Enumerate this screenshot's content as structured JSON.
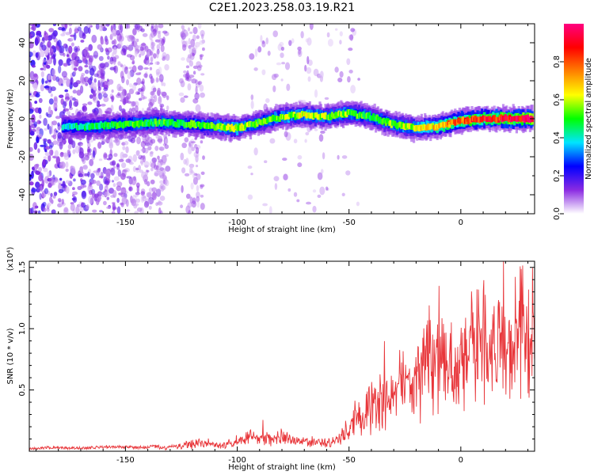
{
  "figure": {
    "title": "C2E1.2023.258.03.19.R21"
  },
  "chart_data": [
    {
      "type": "heatmap",
      "title": "C2E1.2023.258.03.19.R21",
      "xlabel": "Height of straight line (km)",
      "ylabel": "Frequency (Hz)",
      "xlim": [
        -193,
        33
      ],
      "ylim": [
        -50,
        50
      ],
      "xticks": [
        -150,
        -100,
        -50,
        0
      ],
      "yticks": [
        -40,
        -20,
        0,
        20,
        40
      ],
      "colorbar": {
        "label": "Normalized spectral amplitude",
        "range": [
          0.0,
          1.0
        ],
        "ticks": [
          0.0,
          0.2,
          0.4,
          0.6,
          0.8
        ],
        "colors": [
          "#ffffff",
          "#8a2be2",
          "#0000ff",
          "#00e5ff",
          "#00ff00",
          "#ffff00",
          "#ff8000",
          "#ff0000",
          "#ff0080"
        ]
      },
      "ridge": {
        "x": [
          -178,
          -165,
          -150,
          -135,
          -120,
          -110,
          -100,
          -90,
          -80,
          -70,
          -60,
          -50,
          -40,
          -30,
          -20,
          -10,
          0,
          10,
          20,
          32
        ],
        "y": [
          -4,
          -4,
          -3,
          -2,
          -3,
          -4,
          -5,
          -2,
          1,
          2,
          1,
          3,
          1,
          -3,
          -5,
          -4,
          -1,
          0,
          0,
          0
        ],
        "peak_amplitude": [
          0.4,
          0.45,
          0.5,
          0.5,
          0.5,
          0.55,
          0.6,
          0.5,
          0.55,
          0.6,
          0.55,
          0.55,
          0.5,
          0.55,
          0.6,
          0.7,
          0.8,
          0.85,
          0.9,
          0.95
        ]
      }
    },
    {
      "type": "line",
      "xlabel": "Height of straight line (km)",
      "ylabel": "SNR (10 * v/v)",
      "y_multiplier": "(x10⁴)",
      "xlim": [
        -193,
        33
      ],
      "ylim": [
        0,
        15500
      ],
      "xticks": [
        -150,
        -100,
        -50,
        0
      ],
      "yticks": [
        5000,
        10000,
        15000
      ],
      "ytick_labels": [
        "0.5",
        "1.0",
        "1.5"
      ],
      "color": "#e8363a",
      "x": [
        -193,
        -185,
        -175,
        -165,
        -155,
        -145,
        -135,
        -125,
        -118,
        -110,
        -100,
        -95,
        -90,
        -85,
        -80,
        -75,
        -70,
        -65,
        -60,
        -55,
        -50,
        -47,
        -45,
        -40,
        -35,
        -30,
        -25,
        -20,
        -18,
        -15,
        -12,
        -10,
        -5,
        0,
        5,
        8,
        12,
        15,
        20,
        25,
        30,
        33
      ],
      "y": [
        200,
        300,
        250,
        300,
        350,
        300,
        400,
        600,
        900,
        700,
        900,
        1800,
        1500,
        1300,
        1600,
        1200,
        1100,
        1000,
        900,
        1100,
        2500,
        4500,
        3500,
        5000,
        5500,
        6000,
        8000,
        9000,
        7000,
        11000,
        8000,
        10000,
        8500,
        9500,
        11000,
        14000,
        10000,
        12000,
        11500,
        13000,
        13500,
        15000
      ]
    }
  ]
}
